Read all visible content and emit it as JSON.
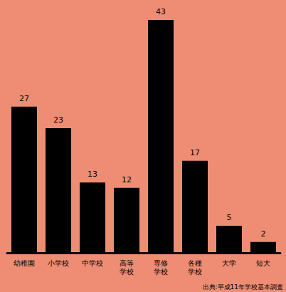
{
  "chart_data": {
    "type": "bar",
    "categories": [
      "幼稚園",
      "小学校",
      "中学校",
      "高等学校",
      "専修学校",
      "各種学校",
      "大学",
      "短大"
    ],
    "values": [
      27,
      23,
      13,
      12,
      43,
      17,
      5,
      2
    ],
    "color": "#000000",
    "data_labels": true,
    "tick_labels": "x",
    "grid": false,
    "annotations": [
      "出典:平成11年学校基本調査"
    ]
  }
}
